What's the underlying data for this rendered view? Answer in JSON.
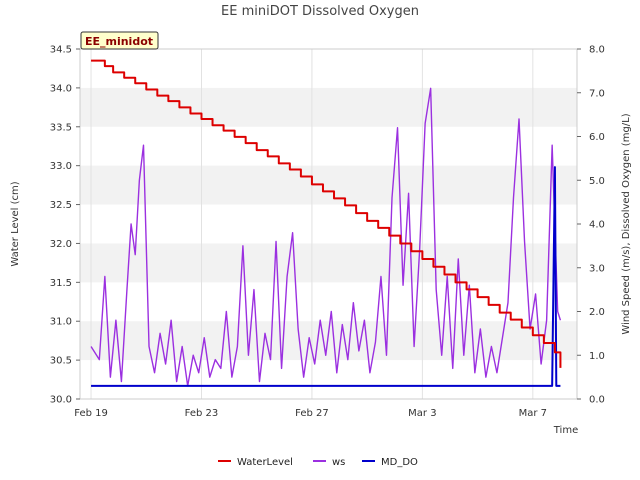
{
  "chart_data": {
    "type": "line",
    "title": "EE miniDOT Dissolved Oxygen",
    "station_label": "EE_minidot",
    "xlabel": "Time",
    "ylabel_left": "Water Level (cm)",
    "ylabel_right": "Wind Speed (m/s), Dissolved Oxygen (mg/L)",
    "x_unit": "days since Feb 19",
    "xlim": [
      -0.4,
      17.6
    ],
    "ylim_left": [
      30.0,
      34.5
    ],
    "ylim_right": [
      0.0,
      8.0
    ],
    "x_ticks": [
      {
        "x": 0,
        "label": "Feb 19"
      },
      {
        "x": 4,
        "label": "Feb 23"
      },
      {
        "x": 8,
        "label": "Feb 27"
      },
      {
        "x": 12,
        "label": "Mar 3"
      },
      {
        "x": 16,
        "label": "Mar 7"
      }
    ],
    "y_ticks_left": [
      "30.0",
      "30.5",
      "31.0",
      "31.5",
      "32.0",
      "32.5",
      "33.0",
      "33.5",
      "34.0",
      "34.5"
    ],
    "y_ticks_right": [
      "0.0",
      "1.0",
      "2.0",
      "3.0",
      "4.0",
      "5.0",
      "6.0",
      "7.0",
      "8.0"
    ],
    "grid": "horizontal bands",
    "legend_position": "bottom-center",
    "series": [
      {
        "name": "WaterLevel",
        "axis": "left",
        "color": "#dd0000",
        "x": [
          0.0,
          0.5,
          0.8,
          1.2,
          1.6,
          2.0,
          2.4,
          2.8,
          3.2,
          3.6,
          4.0,
          4.4,
          4.8,
          5.2,
          5.6,
          6.0,
          6.4,
          6.8,
          7.2,
          7.6,
          8.0,
          8.4,
          8.8,
          9.2,
          9.6,
          10.0,
          10.4,
          10.8,
          11.2,
          11.6,
          12.0,
          12.4,
          12.8,
          13.2,
          13.6,
          14.0,
          14.4,
          14.8,
          15.2,
          15.6,
          16.0,
          16.4,
          16.8,
          17.0
        ],
        "y": [
          34.35,
          34.28,
          34.2,
          34.13,
          34.06,
          33.98,
          33.9,
          33.83,
          33.75,
          33.67,
          33.6,
          33.52,
          33.45,
          33.37,
          33.29,
          33.2,
          33.12,
          33.03,
          32.95,
          32.86,
          32.76,
          32.67,
          32.58,
          32.49,
          32.39,
          32.29,
          32.2,
          32.1,
          32.0,
          31.9,
          31.8,
          31.7,
          31.6,
          31.5,
          31.41,
          31.31,
          31.21,
          31.11,
          31.02,
          30.92,
          30.82,
          30.72,
          30.6,
          30.4
        ]
      },
      {
        "name": "ws",
        "axis": "right",
        "color": "#9b30e0",
        "x": [
          0.0,
          0.3,
          0.5,
          0.7,
          0.9,
          1.1,
          1.3,
          1.45,
          1.6,
          1.75,
          1.9,
          2.1,
          2.3,
          2.5,
          2.7,
          2.9,
          3.1,
          3.3,
          3.5,
          3.7,
          3.9,
          4.1,
          4.3,
          4.5,
          4.7,
          4.9,
          5.1,
          5.3,
          5.5,
          5.7,
          5.9,
          6.1,
          6.3,
          6.5,
          6.7,
          6.9,
          7.1,
          7.3,
          7.5,
          7.7,
          7.9,
          8.1,
          8.3,
          8.5,
          8.7,
          8.9,
          9.1,
          9.3,
          9.5,
          9.7,
          9.9,
          10.1,
          10.3,
          10.5,
          10.7,
          10.9,
          11.1,
          11.3,
          11.5,
          11.7,
          11.9,
          12.1,
          12.3,
          12.5,
          12.7,
          12.9,
          13.1,
          13.3,
          13.5,
          13.7,
          13.9,
          14.1,
          14.3,
          14.5,
          14.7,
          14.9,
          15.1,
          15.3,
          15.5,
          15.7,
          15.9,
          16.1,
          16.3,
          16.5,
          16.7,
          16.9,
          17.0
        ],
        "y": [
          1.2,
          0.9,
          2.8,
          0.5,
          1.8,
          0.4,
          2.5,
          4.0,
          3.3,
          5.0,
          5.8,
          1.2,
          0.6,
          1.5,
          0.8,
          1.8,
          0.4,
          1.2,
          0.3,
          1.0,
          0.6,
          1.4,
          0.5,
          0.9,
          0.7,
          2.0,
          0.5,
          1.2,
          3.5,
          1.0,
          2.5,
          0.4,
          1.5,
          0.9,
          3.6,
          0.7,
          2.8,
          3.8,
          1.6,
          0.5,
          1.4,
          0.8,
          1.8,
          1.0,
          2.0,
          0.6,
          1.7,
          0.9,
          2.2,
          1.1,
          1.8,
          0.6,
          1.3,
          2.8,
          1.0,
          4.6,
          6.2,
          2.6,
          4.7,
          1.2,
          3.4,
          6.3,
          7.1,
          2.5,
          1.0,
          2.8,
          0.7,
          3.2,
          1.0,
          2.6,
          0.6,
          1.6,
          0.5,
          1.2,
          0.6,
          1.4,
          2.2,
          4.6,
          6.4,
          3.6,
          1.6,
          2.4,
          0.8,
          1.8,
          5.8,
          2.0,
          1.8
        ]
      },
      {
        "name": "MD_DO",
        "axis": "right",
        "color": "#0000cc",
        "x": [
          0.0,
          16.5,
          16.7,
          16.8,
          16.85,
          17.0
        ],
        "y": [
          0.3,
          0.3,
          0.3,
          5.3,
          0.3,
          0.3
        ]
      }
    ]
  }
}
